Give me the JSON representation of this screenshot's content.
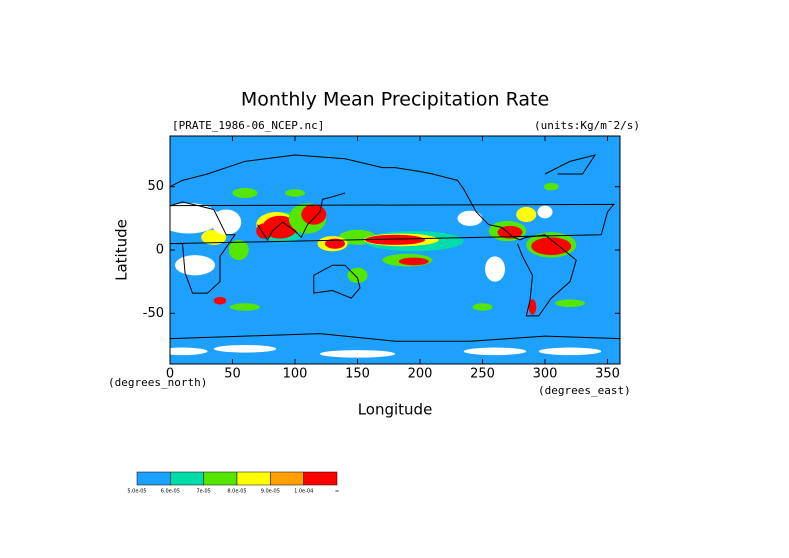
{
  "chart_data": {
    "type": "contour-map",
    "title": "Monthly Mean Precipitation Rate",
    "source_label": "[PRATE_1986-06_NCEP.nc]",
    "units_label": "(units:Kg/m¯2/s)",
    "x_label": "Longitude",
    "y_label": "Latitude",
    "x_unit": "(degrees_east)",
    "y_unit": "(degrees_north)",
    "xlim": [
      0,
      360
    ],
    "ylim": [
      -90,
      90
    ],
    "xticks": [
      0,
      50,
      100,
      150,
      200,
      250,
      300,
      350
    ],
    "yticks": [
      -50,
      0,
      50
    ],
    "legend": {
      "colors": [
        "#1ea0ff",
        "#00dcaa",
        "#55e600",
        "#ffff00",
        "#ffa000",
        "#ff0000"
      ],
      "labels": [
        "5.0e-05",
        "6.0e-05",
        "7e-05",
        "8.0e-05",
        "9.0e-05",
        "1.0e-04",
        "∞"
      ]
    }
  }
}
